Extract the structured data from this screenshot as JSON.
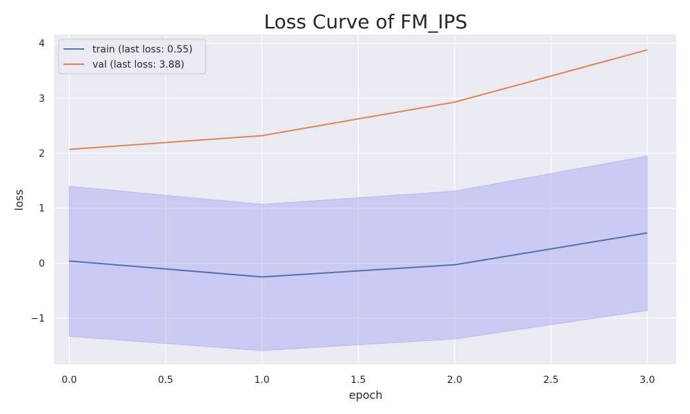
{
  "chart_data": {
    "type": "line",
    "title": "Loss Curve of FM_IPS",
    "xlabel": "epoch",
    "ylabel": "loss",
    "xlim": [
      -0.08,
      3.15
    ],
    "ylim": [
      -1.84,
      4.16
    ],
    "x_ticks": [
      0.0,
      0.5,
      1.0,
      1.5,
      2.0,
      2.5,
      3.0
    ],
    "x_tick_labels": [
      "0.0",
      "0.5",
      "1.0",
      "1.5",
      "2.0",
      "2.5",
      "3.0"
    ],
    "y_ticks": [
      -1,
      0,
      1,
      2,
      3,
      4
    ],
    "y_tick_labels": [
      "−1",
      "0",
      "1",
      "2",
      "3",
      "4"
    ],
    "grid": true,
    "legend_position": "top-left",
    "series": [
      {
        "name": "train (last loss: 0.55)",
        "x": [
          0,
          1,
          2,
          3
        ],
        "values": [
          0.04,
          -0.25,
          -0.03,
          0.55
        ],
        "band_upper": [
          1.4,
          1.07,
          1.31,
          1.95
        ],
        "band_lower": [
          -1.33,
          -1.59,
          -1.38,
          -0.86
        ],
        "color": "#4c72b0",
        "band_color": "#a4a4f4"
      },
      {
        "name": "val (last loss: 3.88)",
        "x": [
          0,
          1,
          2,
          3
        ],
        "values": [
          2.07,
          2.32,
          2.93,
          3.88
        ],
        "color": "#dd8452"
      }
    ]
  }
}
